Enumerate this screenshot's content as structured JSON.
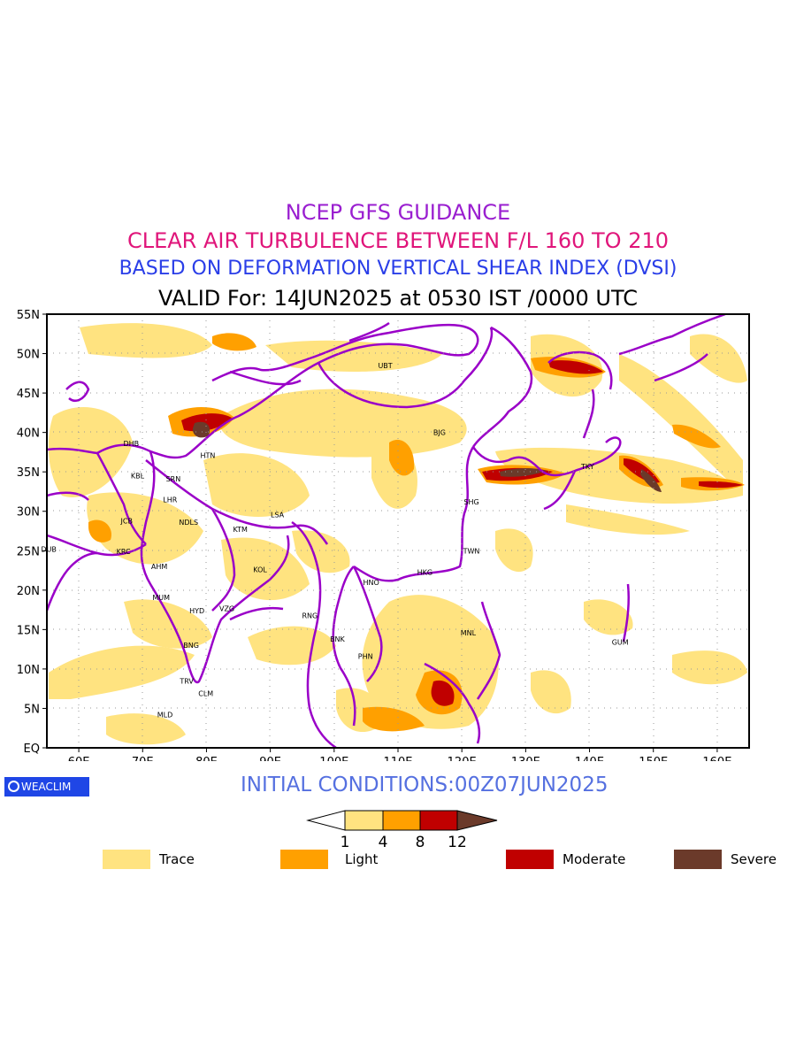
{
  "titles": {
    "line1": "NCEP GFS GUIDANCE",
    "line2": "CLEAR AIR TURBULENCE BETWEEN F/L 160 TO 210",
    "line3": "BASED ON DEFORMATION VERTICAL SHEAR INDEX (DVSI)",
    "line4": "VALID For: 14JUN2025 at 0530 IST /0000 UTC"
  },
  "colors": {
    "title1": "#9a1fd0",
    "title2": "#e0157a",
    "title3": "#2a3ee8",
    "title4": "#000000",
    "border": "#9a00c8",
    "trace": "#ffe380",
    "light": "#ffa000",
    "moderate": "#c00000",
    "severe": "#6b3a2a"
  },
  "map": {
    "lat_labels": [
      "55N",
      "50N",
      "45N",
      "40N",
      "35N",
      "30N",
      "25N",
      "20N",
      "15N",
      "10N",
      "5N",
      "EQ"
    ],
    "lon_labels": [
      "60E",
      "70E",
      "80E",
      "90E",
      "100E",
      "110E",
      "120E",
      "130E",
      "140E",
      "150E",
      "160E"
    ],
    "lon_range": [
      55,
      165
    ],
    "lat_range": [
      0,
      55
    ],
    "stations": [
      {
        "code": "UBT",
        "lon": 108,
        "lat": 48.5
      },
      {
        "code": "BJG",
        "lon": 116.5,
        "lat": 40
      },
      {
        "code": "DHB",
        "lon": 68.2,
        "lat": 38.6
      },
      {
        "code": "HTN",
        "lon": 80.2,
        "lat": 37.1
      },
      {
        "code": "KBL",
        "lon": 69.2,
        "lat": 34.5
      },
      {
        "code": "SRN",
        "lon": 74.8,
        "lat": 34.1
      },
      {
        "code": "LHR",
        "lon": 74.3,
        "lat": 31.5
      },
      {
        "code": "TKY",
        "lon": 139.7,
        "lat": 35.7
      },
      {
        "code": "SHG",
        "lon": 121.5,
        "lat": 31.2
      },
      {
        "code": "LSA",
        "lon": 91.1,
        "lat": 29.6
      },
      {
        "code": "JCB",
        "lon": 67.5,
        "lat": 28.8
      },
      {
        "code": "NDLS",
        "lon": 77.2,
        "lat": 28.6
      },
      {
        "code": "KTM",
        "lon": 85.3,
        "lat": 27.7
      },
      {
        "code": "DUB",
        "lon": 55.3,
        "lat": 25.2
      },
      {
        "code": "KRC",
        "lon": 67.0,
        "lat": 24.9
      },
      {
        "code": "TWN",
        "lon": 121.5,
        "lat": 25.0
      },
      {
        "code": "AHM",
        "lon": 72.6,
        "lat": 23.0
      },
      {
        "code": "KOL",
        "lon": 88.4,
        "lat": 22.6
      },
      {
        "code": "HNO",
        "lon": 105.8,
        "lat": 21.0
      },
      {
        "code": "HKG",
        "lon": 114.2,
        "lat": 22.3
      },
      {
        "code": "MUM",
        "lon": 72.9,
        "lat": 19.1
      },
      {
        "code": "HYD",
        "lon": 78.5,
        "lat": 17.4
      },
      {
        "code": "VZG",
        "lon": 83.2,
        "lat": 17.7
      },
      {
        "code": "RNG",
        "lon": 96.2,
        "lat": 16.8
      },
      {
        "code": "GUM",
        "lon": 144.8,
        "lat": 13.4
      },
      {
        "code": "MNL",
        "lon": 121.0,
        "lat": 14.6
      },
      {
        "code": "BNK",
        "lon": 100.5,
        "lat": 13.8
      },
      {
        "code": "BNG",
        "lon": 77.6,
        "lat": 13.0
      },
      {
        "code": "PHN",
        "lon": 104.9,
        "lat": 11.6
      },
      {
        "code": "TRV",
        "lon": 76.9,
        "lat": 8.5
      },
      {
        "code": "CLM",
        "lon": 79.9,
        "lat": 6.9
      },
      {
        "code": "MLD",
        "lon": 73.5,
        "lat": 4.2
      }
    ]
  },
  "logo": {
    "text": "WEACLIM"
  },
  "initial_conditions": "INITIAL CONDITIONS:00Z07JUN2025",
  "colorbar": {
    "ticks": [
      "1",
      "4",
      "8",
      "12"
    ]
  },
  "legend": [
    {
      "label": "Trace",
      "color_key": "trace"
    },
    {
      "label": "Light",
      "color_key": "light"
    },
    {
      "label": "Moderate",
      "color_key": "moderate"
    },
    {
      "label": "Severe",
      "color_key": "severe"
    }
  ]
}
